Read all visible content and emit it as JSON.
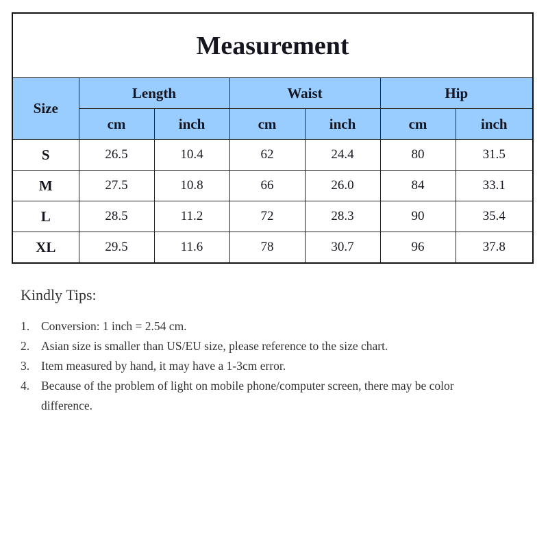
{
  "title": "Measurement",
  "headers": {
    "size": "Size",
    "groups": [
      "Length",
      "Waist",
      "Hip"
    ],
    "units": [
      "cm",
      "inch",
      "cm",
      "inch",
      "cm",
      "inch"
    ]
  },
  "header_color": "#99ccff",
  "rows": [
    {
      "size": "S",
      "values": [
        "26.5",
        "10.4",
        "62",
        "24.4",
        "80",
        "31.5"
      ]
    },
    {
      "size": "M",
      "values": [
        "27.5",
        "10.8",
        "66",
        "26.0",
        "84",
        "33.1"
      ]
    },
    {
      "size": "L",
      "values": [
        "28.5",
        "11.2",
        "72",
        "28.3",
        "90",
        "35.4"
      ]
    },
    {
      "size": "XL",
      "values": [
        "29.5",
        "11.6",
        "78",
        "30.7",
        "96",
        "37.8"
      ]
    }
  ],
  "tips": {
    "title": "Kindly Tips:",
    "items": [
      {
        "num": "1.",
        "text": "Conversion: 1 inch = 2.54 cm."
      },
      {
        "num": "2.",
        "text": "Asian size is smaller than US/EU size, please reference to the size chart."
      },
      {
        "num": "3.",
        "text": "Item measured by hand, it may have a 1-3cm error."
      },
      {
        "num": "4.",
        "text": "Because of the problem of light on mobile phone/computer screen, there may be color difference."
      }
    ]
  }
}
